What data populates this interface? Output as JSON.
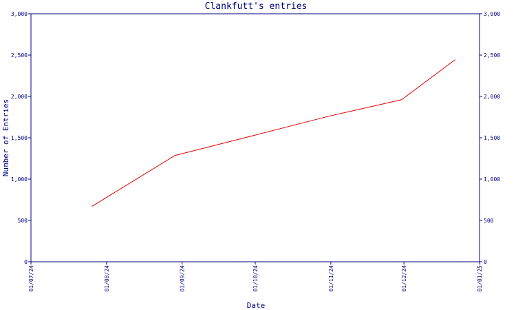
{
  "chart_data": {
    "type": "line",
    "title": "Clankfutt's entries",
    "xlabel": "Date",
    "ylabel": "Number of Entries",
    "x_ticks": [
      "01/07/24",
      "01/08/24",
      "01/09/24",
      "01/10/24",
      "01/11/24",
      "01/12/24",
      "01/01/25"
    ],
    "y_ticks": [
      "0",
      "500",
      "1,000",
      "1,500",
      "2,000",
      "2,500",
      "3,000"
    ],
    "ylim": [
      0,
      3000
    ],
    "grid": false,
    "series": [
      {
        "x": [
          "2024-07-26",
          "2024-08-29",
          "2024-09-30",
          "2024-10-31",
          "2024-11-30",
          "2024-12-22"
        ],
        "y": [
          670,
          1285,
          1525,
          1760,
          1960,
          2445
        ]
      }
    ],
    "colors": {
      "axis": "#000080",
      "line": "#e00000"
    }
  }
}
